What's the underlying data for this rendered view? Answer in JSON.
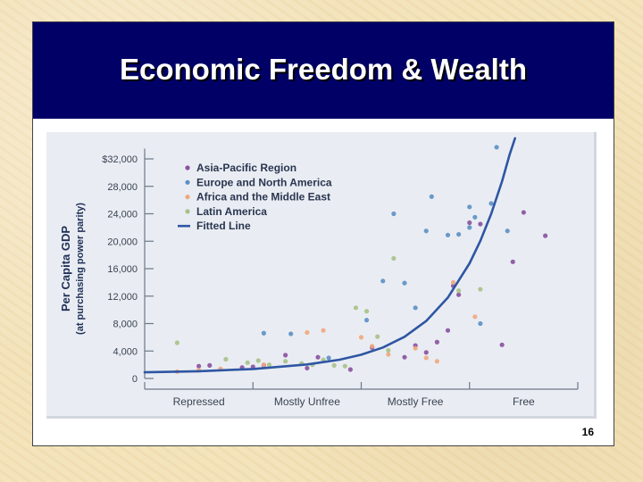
{
  "slide": {
    "title": "Economic Freedom & Wealth",
    "page_number": "16"
  },
  "colors": {
    "title_bar": "#000066",
    "asia_pacific": "#8a4fa0",
    "europe_north_america": "#5b8fc4",
    "africa_middle_east": "#f0a77e",
    "latin_america": "#a9c08a",
    "fitted_line": "#2f56a3"
  },
  "chart_data": {
    "type": "scatter",
    "title": "",
    "ylabel_lines": [
      "Per Capita GDP",
      "(at purchasing power parity)"
    ],
    "xlabel": "",
    "y_ticks": [
      "$32,000",
      "28,000",
      "24,000",
      "20,000",
      "16,000",
      "12,000",
      "8,000",
      "4,000",
      "0"
    ],
    "y_tick_values": [
      32000,
      28000,
      24000,
      20000,
      16000,
      12000,
      8000,
      4000,
      0
    ],
    "ylim": [
      0,
      34000
    ],
    "x_categories": [
      "Repressed",
      "Mostly Unfree",
      "Mostly Free",
      "Free"
    ],
    "xlim": [
      0,
      4
    ],
    "x_unit": "economic freedom score band (0 = most repressed, 4 = most free)",
    "legend_position": "top-left",
    "grid": false,
    "series": [
      {
        "name": "Asia-Pacific Region",
        "color": "#8a4fa0",
        "marker": "dot",
        "points": [
          [
            0.5,
            1800
          ],
          [
            0.6,
            1900
          ],
          [
            0.9,
            1600
          ],
          [
            1.0,
            1700
          ],
          [
            1.1,
            1900
          ],
          [
            1.3,
            3400
          ],
          [
            1.5,
            1500
          ],
          [
            1.6,
            3100
          ],
          [
            1.9,
            1300
          ],
          [
            2.1,
            4500
          ],
          [
            2.4,
            3100
          ],
          [
            2.5,
            4800
          ],
          [
            2.6,
            3800
          ],
          [
            2.7,
            5300
          ],
          [
            2.8,
            7000
          ],
          [
            2.85,
            13500
          ],
          [
            2.9,
            12200
          ],
          [
            3.0,
            22700
          ],
          [
            3.1,
            22500
          ],
          [
            3.3,
            4900
          ],
          [
            3.4,
            17000
          ],
          [
            3.5,
            24200
          ],
          [
            3.7,
            20800
          ]
        ]
      },
      {
        "name": "Europe and North America",
        "color": "#5b8fc4",
        "marker": "dot",
        "points": [
          [
            1.1,
            6600
          ],
          [
            1.35,
            6500
          ],
          [
            1.7,
            3000
          ],
          [
            2.05,
            8500
          ],
          [
            2.2,
            14200
          ],
          [
            2.3,
            24000
          ],
          [
            2.4,
            13900
          ],
          [
            2.5,
            10300
          ],
          [
            2.6,
            21500
          ],
          [
            2.65,
            26500
          ],
          [
            2.8,
            20900
          ],
          [
            2.9,
            21000
          ],
          [
            3.0,
            22000
          ],
          [
            3.0,
            25000
          ],
          [
            3.05,
            23500
          ],
          [
            3.1,
            8000
          ],
          [
            3.2,
            25500
          ],
          [
            3.25,
            33700
          ],
          [
            3.35,
            21500
          ]
        ]
      },
      {
        "name": "Africa and the Middle East",
        "color": "#f0a77e",
        "marker": "dot",
        "points": [
          [
            0.3,
            1000
          ],
          [
            0.5,
            1200
          ],
          [
            0.7,
            1400
          ],
          [
            1.1,
            2000
          ],
          [
            1.5,
            6700
          ],
          [
            1.65,
            7000
          ],
          [
            2.0,
            6000
          ],
          [
            2.1,
            4700
          ],
          [
            2.25,
            3500
          ],
          [
            2.5,
            4400
          ],
          [
            2.6,
            3000
          ],
          [
            2.7,
            2500
          ],
          [
            2.85,
            14000
          ],
          [
            3.05,
            9000
          ]
        ]
      },
      {
        "name": "Latin America",
        "color": "#a9c08a",
        "marker": "dot",
        "points": [
          [
            0.3,
            5200
          ],
          [
            0.75,
            2800
          ],
          [
            0.95,
            2300
          ],
          [
            1.05,
            2600
          ],
          [
            1.15,
            2000
          ],
          [
            1.3,
            2500
          ],
          [
            1.45,
            2200
          ],
          [
            1.55,
            2000
          ],
          [
            1.65,
            2700
          ],
          [
            1.75,
            1900
          ],
          [
            1.85,
            1800
          ],
          [
            1.95,
            10300
          ],
          [
            2.05,
            9800
          ],
          [
            2.15,
            6100
          ],
          [
            2.25,
            4100
          ],
          [
            2.3,
            17500
          ],
          [
            2.9,
            12800
          ],
          [
            3.1,
            13000
          ]
        ]
      },
      {
        "name": "Fitted Line",
        "color": "#2f56a3",
        "marker": "line",
        "points": [
          [
            0,
            900
          ],
          [
            0.5,
            1060
          ],
          [
            1.0,
            1380
          ],
          [
            1.5,
            2040
          ],
          [
            1.8,
            2730
          ],
          [
            2.0,
            3460
          ],
          [
            2.2,
            4520
          ],
          [
            2.4,
            6080
          ],
          [
            2.6,
            8380
          ],
          [
            2.8,
            11780
          ],
          [
            3.0,
            16780
          ],
          [
            3.1,
            20060
          ],
          [
            3.2,
            23990
          ],
          [
            3.3,
            28700
          ],
          [
            3.37,
            32600
          ],
          [
            3.42,
            35000
          ]
        ]
      }
    ]
  }
}
